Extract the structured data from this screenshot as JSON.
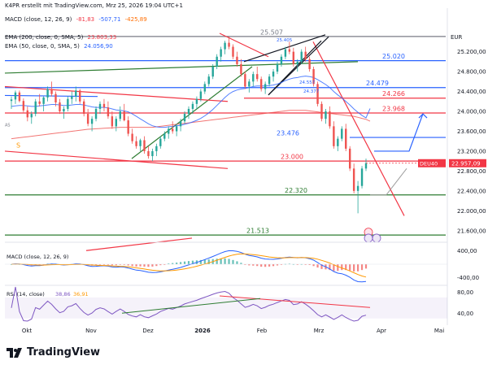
{
  "header": {
    "creator": "K4PR erstellt mit TradingView.com, Mrz 25, 2026 19:04 UTC+1",
    "macd_title": "MACD (close, 12, 26, 9)",
    "macd_values": [
      "-81,83",
      "-507,71",
      "-425,89"
    ],
    "ema200_title": "EMA (200, close, 0, SMA, 5)",
    "ema200_value": "23.803,33",
    "ema50_title": "EMA (50, close, 0, SMA, 5)",
    "ema50_value": "24.056,90"
  },
  "branding": {
    "logo_text": "TradingView"
  },
  "colors": {
    "candle_up": "#26a69a",
    "candle_down": "#ef5350",
    "ema200": "#ef5350",
    "ema50": "#2962ff",
    "support_line": "#2e7d32",
    "resistance_line": "#f23645",
    "projection": "#2962ff",
    "macd_line": "#2962ff",
    "signal_line": "#ff9800",
    "rsi_line": "#7e57c2",
    "price_badge": "#f23645"
  },
  "chart_data": {
    "type": "candlestick",
    "symbol": "DEU40",
    "currency_label": "EUR",
    "current_price": 22957.09,
    "current_price_label": "22.957,09",
    "y_ticks": [
      25200,
      24800,
      24400,
      24000,
      23600,
      23200,
      22800,
      22400,
      22000,
      21600
    ],
    "y_tick_labels": [
      "25.200,00",
      "24.800,00",
      "24.400,00",
      "24.000,00",
      "23.600,00",
      "23.200,00",
      "22.800,00",
      "22.400,00",
      "22.000,00",
      "21.600,00"
    ],
    "ylim": [
      21400,
      25750
    ],
    "x_tick_labels": [
      "Okt",
      "Nov",
      "Dez",
      "2026",
      "Feb",
      "Mrz",
      "Apr",
      "Mai"
    ],
    "horizontal_levels": [
      {
        "value": 25507,
        "label": "25.507",
        "color": "#787b86"
      },
      {
        "value": 25020,
        "label": "25.020",
        "color": "#2962ff"
      },
      {
        "value": 24479,
        "label": "24.479",
        "color": "#2962ff"
      },
      {
        "value": 24266,
        "label": "24.266",
        "color": "#f23645"
      },
      {
        "value": 23968,
        "label": "23.968",
        "color": "#f23645"
      },
      {
        "value": 23476,
        "label": "23.476",
        "color": "#2962ff"
      },
      {
        "value": 23000,
        "label": "23.000",
        "color": "#f23645"
      },
      {
        "value": 22320,
        "label": "22.320",
        "color": "#2e7d32"
      },
      {
        "value": 21513,
        "label": "21.513",
        "color": "#2e7d32"
      }
    ],
    "small_labels": [
      {
        "value": 25405,
        "label": "25.405"
      },
      {
        "value": 24557,
        "label": "24.557"
      },
      {
        "value": 24377,
        "label": "24.377"
      }
    ],
    "side_marker": "S",
    "left_marker": "AS",
    "candles": [
      [
        24210,
        24300,
        24050,
        24240
      ],
      [
        24240,
        24420,
        24150,
        24380
      ],
      [
        24380,
        24420,
        24180,
        24210
      ],
      [
        24210,
        24260,
        23980,
        24020
      ],
      [
        24020,
        24100,
        23800,
        23880
      ],
      [
        23880,
        24000,
        23750,
        23950
      ],
      [
        23950,
        24250,
        23900,
        24200
      ],
      [
        24200,
        24350,
        24100,
        24150
      ],
      [
        24150,
        24300,
        24000,
        24280
      ],
      [
        24280,
        24500,
        24200,
        24450
      ],
      [
        24450,
        24600,
        24300,
        24350
      ],
      [
        24350,
        24400,
        24100,
        24180
      ],
      [
        24180,
        24250,
        23950,
        24000
      ],
      [
        24000,
        24100,
        23850,
        24050
      ],
      [
        24050,
        24300,
        24000,
        24250
      ],
      [
        24250,
        24400,
        24150,
        24300
      ],
      [
        24300,
        24500,
        24200,
        24420
      ],
      [
        24420,
        24450,
        24150,
        24200
      ],
      [
        24200,
        24250,
        23900,
        23950
      ],
      [
        23950,
        24050,
        23700,
        23750
      ],
      [
        23750,
        23900,
        23600,
        23850
      ],
      [
        23850,
        24100,
        23800,
        24050
      ],
      [
        24050,
        24200,
        23950,
        24150
      ],
      [
        24150,
        24250,
        24000,
        24080
      ],
      [
        24080,
        24200,
        23850,
        23900
      ],
      [
        23900,
        24000,
        23650,
        23700
      ],
      [
        23700,
        23900,
        23600,
        23850
      ],
      [
        23850,
        24100,
        23800,
        24000
      ],
      [
        24000,
        24150,
        23800,
        23820
      ],
      [
        23820,
        23900,
        23500,
        23550
      ],
      [
        23550,
        23650,
        23350,
        23400
      ],
      [
        23400,
        23500,
        23250,
        23300
      ],
      [
        23300,
        23450,
        23200,
        23420
      ],
      [
        23420,
        23500,
        23150,
        23200
      ],
      [
        23200,
        23300,
        23050,
        23100
      ],
      [
        23100,
        23250,
        23000,
        23200
      ],
      [
        23200,
        23350,
        23100,
        23300
      ],
      [
        23300,
        23500,
        23250,
        23450
      ],
      [
        23450,
        23600,
        23400,
        23550
      ],
      [
        23550,
        23700,
        23450,
        23650
      ],
      [
        23650,
        23800,
        23550,
        23600
      ],
      [
        23600,
        23750,
        23500,
        23700
      ],
      [
        23700,
        23850,
        23600,
        23800
      ],
      [
        23800,
        24000,
        23750,
        23950
      ],
      [
        23950,
        24100,
        23850,
        24050
      ],
      [
        24050,
        24200,
        23950,
        24150
      ],
      [
        24150,
        24300,
        24050,
        24250
      ],
      [
        24250,
        24450,
        24200,
        24400
      ],
      [
        24400,
        24600,
        24350,
        24550
      ],
      [
        24550,
        24750,
        24500,
        24700
      ],
      [
        24700,
        24950,
        24650,
        24900
      ],
      [
        24900,
        25150,
        24850,
        25100
      ],
      [
        25100,
        25300,
        25000,
        25250
      ],
      [
        25250,
        25420,
        25150,
        25380
      ],
      [
        25380,
        25507,
        25250,
        25300
      ],
      [
        25300,
        25350,
        25050,
        25100
      ],
      [
        25100,
        25200,
        24900,
        24950
      ],
      [
        24950,
        25050,
        24700,
        24750
      ],
      [
        24750,
        24800,
        24450,
        24500
      ],
      [
        24500,
        24650,
        24380,
        24600
      ],
      [
        24600,
        24800,
        24500,
        24750
      ],
      [
        24750,
        24900,
        24600,
        24650
      ],
      [
        24650,
        24700,
        24400,
        24450
      ],
      [
        24450,
        24600,
        24350,
        24550
      ],
      [
        24550,
        24750,
        24500,
        24700
      ],
      [
        24700,
        24850,
        24600,
        24800
      ],
      [
        24800,
        25000,
        24750,
        24950
      ],
      [
        24950,
        25150,
        24900,
        25100
      ],
      [
        25100,
        25300,
        25050,
        25250
      ],
      [
        25250,
        25400,
        25150,
        25200
      ],
      [
        25200,
        25280,
        24900,
        24950
      ],
      [
        24950,
        25050,
        24800,
        25000
      ],
      [
        25000,
        25250,
        24950,
        25200
      ],
      [
        25200,
        25300,
        25000,
        25050
      ],
      [
        25050,
        25100,
        24800,
        24850
      ],
      [
        24850,
        24900,
        24500,
        24550
      ],
      [
        24550,
        24600,
        24100,
        24150
      ],
      [
        24150,
        24200,
        23800,
        23850
      ],
      [
        23850,
        24050,
        23750,
        24000
      ],
      [
        24000,
        24100,
        23650,
        23700
      ],
      [
        23700,
        23800,
        23250,
        23300
      ],
      [
        23300,
        23500,
        23200,
        23450
      ],
      [
        23450,
        23700,
        23400,
        23650
      ],
      [
        23650,
        23750,
        23200,
        23250
      ],
      [
        23250,
        23300,
        22800,
        22850
      ],
      [
        22850,
        22950,
        22350,
        22400
      ],
      [
        22400,
        22600,
        21950,
        22500
      ],
      [
        22500,
        22900,
        22450,
        22850
      ],
      [
        22850,
        23050,
        22800,
        22957.09
      ]
    ],
    "ema200": [
      23450,
      23460,
      23470,
      23480,
      23490,
      23500,
      23510,
      23520,
      23530,
      23540,
      23550,
      23560,
      23570,
      23580,
      23590,
      23600,
      23610,
      23620,
      23630,
      23640,
      23645,
      23650,
      23655,
      23660,
      23665,
      23670,
      23675,
      23680,
      23680,
      23680,
      23680,
      23680,
      23680,
      23680,
      23680,
      23680,
      23690,
      23700,
      23710,
      23720,
      23730,
      23740,
      23750,
      23760,
      23770,
      23780,
      23790,
      23800,
      23810,
      23820,
      23830,
      23840,
      23850,
      23860,
      23870,
      23880,
      23890,
      23900,
      23910,
      23920,
      23930,
      23940,
      23950,
      23960,
      23970,
      23980,
      23990,
      24000,
      24010,
      24020,
      24020,
      24020,
      24020,
      24020,
      24010,
      24000,
      23990,
      23980,
      23970,
      23960,
      23950,
      23940,
      23930,
      23920,
      23910,
      23900,
      23880,
      23860,
      23840,
      23803
    ],
    "ema50": [
      24100,
      24110,
      24120,
      24120,
      24110,
      24100,
      24100,
      24110,
      24120,
      24130,
      24140,
      24140,
      24130,
      24120,
      24120,
      24130,
      24140,
      24140,
      24130,
      24110,
      24090,
      24080,
      24080,
      24080,
      24070,
      24050,
      24030,
      24020,
      24010,
      23990,
      23950,
      23900,
      23850,
      23800,
      23750,
      23710,
      23690,
      23680,
      23680,
      23690,
      23700,
      23710,
      23720,
      23740,
      23760,
      23790,
      23820,
      23860,
      23910,
      23970,
      24040,
      24120,
      24200,
      24280,
      24350,
      24400,
      24430,
      24450,
      24460,
      24480,
      24500,
      24510,
      24510,
      24510,
      24520,
      24530,
      24550,
      24580,
      24620,
      24650,
      24670,
      24680,
      24700,
      24710,
      24700,
      24680,
      24640,
      24590,
      24540,
      24480,
      24400,
      24330,
      24270,
      24200,
      24130,
      24050,
      23980,
      23920,
      23870,
      24056.9
    ],
    "macd": {
      "ticks": [
        400,
        -400
      ],
      "tick_labels": [
        "400,00",
        "-400,00"
      ],
      "ylim": [
        -600,
        600
      ],
      "values": [
        -81.83,
        -507.71,
        -425.89
      ]
    },
    "rsi": {
      "ticks": [
        80,
        40
      ],
      "tick_labels": [
        "80,00",
        "40,00"
      ],
      "ylim": [
        25,
        90
      ],
      "title": "RSI (14, close)",
      "values": [
        "38,86",
        "36,91"
      ]
    }
  }
}
